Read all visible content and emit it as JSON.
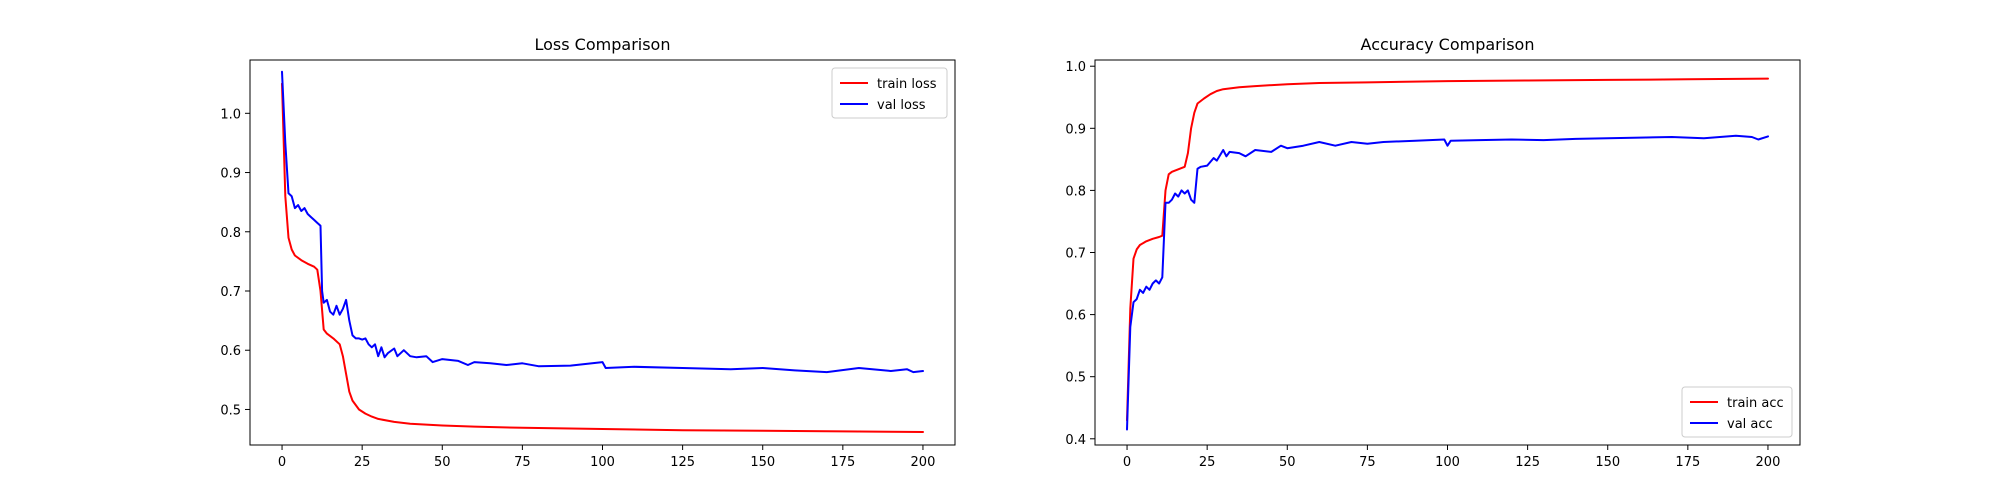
{
  "chart_data": [
    {
      "type": "line",
      "title": "Loss Comparison",
      "xlabel": "",
      "ylabel": "",
      "xlim": [
        -10,
        210
      ],
      "ylim": [
        0.44,
        1.09
      ],
      "xticks": [
        0,
        25,
        50,
        75,
        100,
        125,
        150,
        175,
        200
      ],
      "yticks": [
        0.5,
        0.6,
        0.7,
        0.8,
        0.9,
        1.0
      ],
      "ytick_labels": [
        "0.5",
        "0.6",
        "0.7",
        "0.8",
        "0.9",
        "1.0"
      ],
      "grid": false,
      "legend_position": "upper right",
      "series": [
        {
          "name": "train loss",
          "color": "#ff0000",
          "points": [
            [
              0,
              1.05
            ],
            [
              1,
              0.86
            ],
            [
              2,
              0.79
            ],
            [
              3,
              0.77
            ],
            [
              4,
              0.76
            ],
            [
              6,
              0.752
            ],
            [
              8,
              0.746
            ],
            [
              10,
              0.741
            ],
            [
              11,
              0.736
            ],
            [
              12,
              0.7
            ],
            [
              13,
              0.635
            ],
            [
              14,
              0.628
            ],
            [
              16,
              0.62
            ],
            [
              18,
              0.61
            ],
            [
              19,
              0.59
            ],
            [
              20,
              0.56
            ],
            [
              21,
              0.53
            ],
            [
              22,
              0.515
            ],
            [
              24,
              0.5
            ],
            [
              26,
              0.493
            ],
            [
              28,
              0.488
            ],
            [
              30,
              0.484
            ],
            [
              35,
              0.479
            ],
            [
              40,
              0.476
            ],
            [
              50,
              0.473
            ],
            [
              60,
              0.471
            ],
            [
              75,
              0.469
            ],
            [
              100,
              0.467
            ],
            [
              125,
              0.465
            ],
            [
              150,
              0.464
            ],
            [
              175,
              0.463
            ],
            [
              200,
              0.462
            ]
          ]
        },
        {
          "name": "val loss",
          "color": "#0000ff",
          "points": [
            [
              0,
              1.07
            ],
            [
              1,
              0.95
            ],
            [
              2,
              0.865
            ],
            [
              3,
              0.86
            ],
            [
              4,
              0.84
            ],
            [
              5,
              0.845
            ],
            [
              6,
              0.835
            ],
            [
              7,
              0.84
            ],
            [
              8,
              0.83
            ],
            [
              9,
              0.825
            ],
            [
              10,
              0.82
            ],
            [
              11,
              0.815
            ],
            [
              12,
              0.81
            ],
            [
              12.5,
              0.7
            ],
            [
              13,
              0.68
            ],
            [
              14,
              0.685
            ],
            [
              15,
              0.665
            ],
            [
              16,
              0.66
            ],
            [
              17,
              0.675
            ],
            [
              18,
              0.66
            ],
            [
              19,
              0.67
            ],
            [
              20,
              0.685
            ],
            [
              21,
              0.65
            ],
            [
              22,
              0.625
            ],
            [
              23,
              0.62
            ],
            [
              24,
              0.62
            ],
            [
              25,
              0.618
            ],
            [
              26,
              0.62
            ],
            [
              27,
              0.61
            ],
            [
              28,
              0.605
            ],
            [
              29,
              0.61
            ],
            [
              30,
              0.59
            ],
            [
              31,
              0.605
            ],
            [
              32,
              0.588
            ],
            [
              33,
              0.595
            ],
            [
              35,
              0.603
            ],
            [
              36,
              0.59
            ],
            [
              38,
              0.6
            ],
            [
              40,
              0.59
            ],
            [
              42,
              0.588
            ],
            [
              45,
              0.59
            ],
            [
              47,
              0.58
            ],
            [
              50,
              0.585
            ],
            [
              55,
              0.582
            ],
            [
              58,
              0.575
            ],
            [
              60,
              0.58
            ],
            [
              65,
              0.578
            ],
            [
              70,
              0.575
            ],
            [
              75,
              0.578
            ],
            [
              80,
              0.573
            ],
            [
              90,
              0.574
            ],
            [
              100,
              0.58
            ],
            [
              101,
              0.57
            ],
            [
              110,
              0.572
            ],
            [
              125,
              0.57
            ],
            [
              140,
              0.568
            ],
            [
              150,
              0.57
            ],
            [
              160,
              0.566
            ],
            [
              170,
              0.563
            ],
            [
              180,
              0.57
            ],
            [
              190,
              0.565
            ],
            [
              195,
              0.568
            ],
            [
              197,
              0.563
            ],
            [
              200,
              0.565
            ]
          ]
        }
      ]
    },
    {
      "type": "line",
      "title": "Accuracy Comparison",
      "xlabel": "",
      "ylabel": "",
      "xlim": [
        -10,
        210
      ],
      "ylim": [
        0.39,
        1.01
      ],
      "xticks": [
        0,
        25,
        50,
        75,
        100,
        125,
        150,
        175,
        200
      ],
      "yticks": [
        0.4,
        0.5,
        0.6,
        0.7,
        0.8,
        0.9,
        1.0
      ],
      "ytick_labels": [
        "0.4",
        "0.5",
        "0.6",
        "0.7",
        "0.8",
        "0.9",
        "1.0"
      ],
      "grid": false,
      "legend_position": "lower right",
      "series": [
        {
          "name": "train acc",
          "color": "#ff0000",
          "points": [
            [
              0,
              0.43
            ],
            [
              1,
              0.61
            ],
            [
              2,
              0.69
            ],
            [
              3,
              0.705
            ],
            [
              4,
              0.712
            ],
            [
              6,
              0.718
            ],
            [
              8,
              0.722
            ],
            [
              10,
              0.725
            ],
            [
              11,
              0.727
            ],
            [
              12,
              0.8
            ],
            [
              13,
              0.826
            ],
            [
              14,
              0.83
            ],
            [
              16,
              0.834
            ],
            [
              18,
              0.838
            ],
            [
              19,
              0.86
            ],
            [
              20,
              0.9
            ],
            [
              21,
              0.925
            ],
            [
              22,
              0.94
            ],
            [
              24,
              0.948
            ],
            [
              26,
              0.955
            ],
            [
              28,
              0.96
            ],
            [
              30,
              0.963
            ],
            [
              35,
              0.966
            ],
            [
              40,
              0.968
            ],
            [
              50,
              0.971
            ],
            [
              60,
              0.973
            ],
            [
              75,
              0.974
            ],
            [
              100,
              0.976
            ],
            [
              125,
              0.977
            ],
            [
              150,
              0.978
            ],
            [
              175,
              0.979
            ],
            [
              200,
              0.98
            ]
          ]
        },
        {
          "name": "val acc",
          "color": "#0000ff",
          "points": [
            [
              0,
              0.415
            ],
            [
              1,
              0.58
            ],
            [
              2,
              0.62
            ],
            [
              3,
              0.625
            ],
            [
              4,
              0.64
            ],
            [
              5,
              0.635
            ],
            [
              6,
              0.645
            ],
            [
              7,
              0.64
            ],
            [
              8,
              0.65
            ],
            [
              9,
              0.655
            ],
            [
              10,
              0.65
            ],
            [
              11,
              0.66
            ],
            [
              12,
              0.78
            ],
            [
              13,
              0.78
            ],
            [
              14,
              0.785
            ],
            [
              15,
              0.795
            ],
            [
              16,
              0.79
            ],
            [
              17,
              0.8
            ],
            [
              18,
              0.795
            ],
            [
              19,
              0.8
            ],
            [
              20,
              0.785
            ],
            [
              21,
              0.78
            ],
            [
              22,
              0.835
            ],
            [
              23,
              0.838
            ],
            [
              25,
              0.84
            ],
            [
              27,
              0.852
            ],
            [
              28,
              0.848
            ],
            [
              30,
              0.865
            ],
            [
              31,
              0.855
            ],
            [
              32,
              0.862
            ],
            [
              35,
              0.86
            ],
            [
              37,
              0.855
            ],
            [
              40,
              0.865
            ],
            [
              45,
              0.862
            ],
            [
              48,
              0.872
            ],
            [
              50,
              0.868
            ],
            [
              55,
              0.872
            ],
            [
              60,
              0.878
            ],
            [
              65,
              0.872
            ],
            [
              70,
              0.878
            ],
            [
              75,
              0.875
            ],
            [
              80,
              0.878
            ],
            [
              90,
              0.88
            ],
            [
              99,
              0.882
            ],
            [
              100,
              0.872
            ],
            [
              101,
              0.88
            ],
            [
              110,
              0.881
            ],
            [
              120,
              0.882
            ],
            [
              130,
              0.881
            ],
            [
              140,
              0.883
            ],
            [
              150,
              0.884
            ],
            [
              160,
              0.885
            ],
            [
              170,
              0.886
            ],
            [
              180,
              0.884
            ],
            [
              190,
              0.888
            ],
            [
              195,
              0.886
            ],
            [
              197,
              0.882
            ],
            [
              200,
              0.887
            ]
          ]
        }
      ]
    }
  ]
}
